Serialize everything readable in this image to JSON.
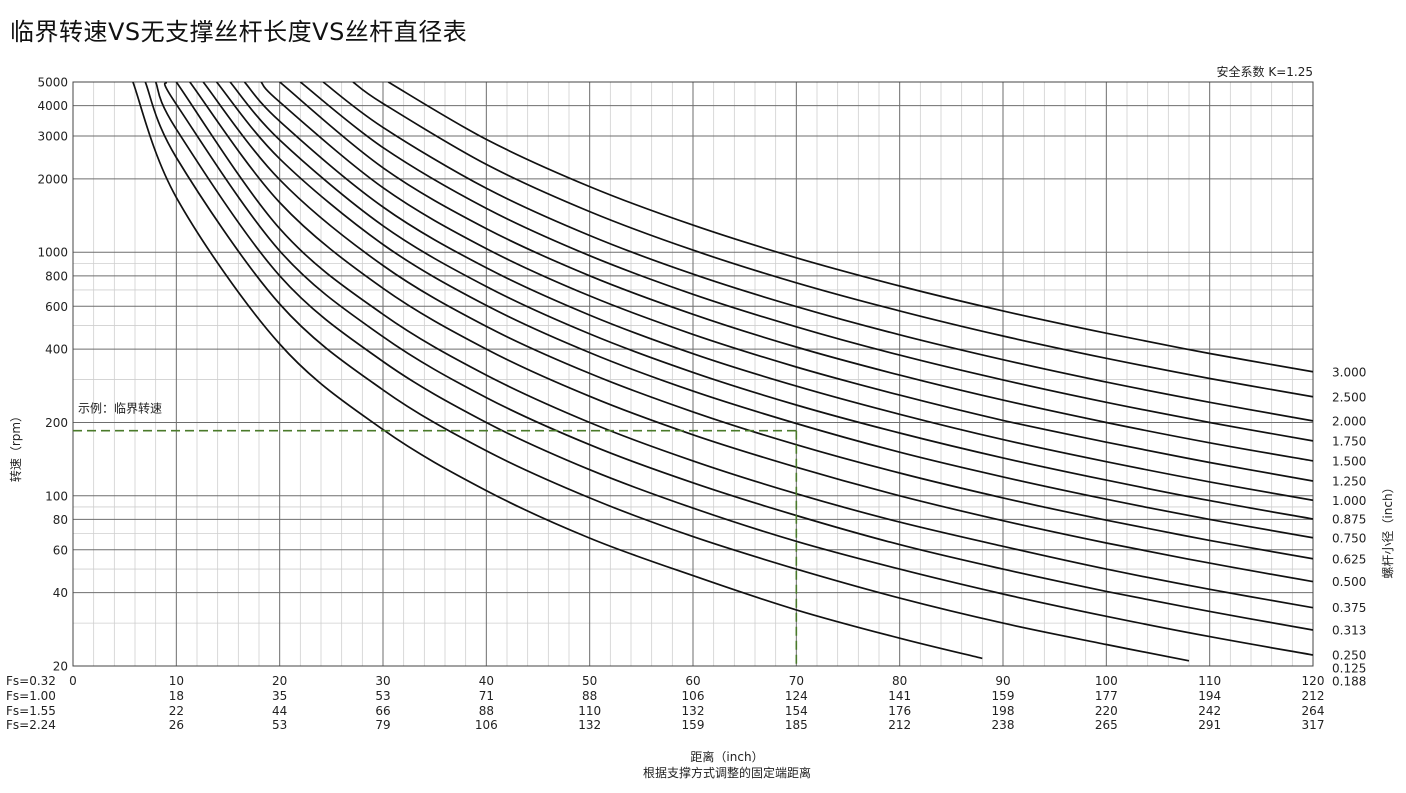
{
  "page": {
    "title": "临界转速VS无支撑丝杆长度VS丝杆直径表"
  },
  "chart_data": {
    "type": "line",
    "x_scale": "linear",
    "y_scale": "log",
    "xlim": [
      0,
      120
    ],
    "ylim": [
      20,
      5000
    ],
    "safety_factor_label": "安全系数 K=1.25",
    "ylabel": "转速（rpm）",
    "y2label": "螺杆小径（inch）",
    "xlabel": "距离（inch）",
    "xsublabel": "根据支撑方式调整的固定端距离",
    "y_ticks": [
      20,
      40,
      60,
      80,
      100,
      200,
      400,
      600,
      800,
      1000,
      2000,
      3000,
      4000,
      5000
    ],
    "x_rows": [
      {
        "label": "Fs=0.32",
        "values": [
          "0",
          "10",
          "20",
          "30",
          "40",
          "50",
          "60",
          "70",
          "80",
          "90",
          "100",
          "110",
          "120"
        ]
      },
      {
        "label": "Fs=1.00",
        "values": [
          "",
          "18",
          "35",
          "53",
          "71",
          "88",
          "106",
          "124",
          "141",
          "159",
          "177",
          "194",
          "212"
        ]
      },
      {
        "label": "Fs=1.55",
        "values": [
          "",
          "22",
          "44",
          "66",
          "88",
          "110",
          "132",
          "154",
          "176",
          "198",
          "220",
          "242",
          "264"
        ]
      },
      {
        "label": "Fs=2.24",
        "values": [
          "",
          "26",
          "53",
          "79",
          "106",
          "132",
          "159",
          "185",
          "212",
          "238",
          "265",
          "291",
          "317"
        ]
      }
    ],
    "x_values": [
      0,
      10,
      20,
      30,
      40,
      50,
      60,
      70,
      80,
      90,
      100,
      110,
      120
    ],
    "series": [
      {
        "name": "0.125",
        "values": [
          [
            5.8,
            5000
          ],
          [
            10,
            1680
          ],
          [
            20,
            420
          ],
          [
            30,
            187
          ],
          [
            40,
            105
          ],
          [
            50,
            67
          ],
          [
            60,
            47
          ],
          [
            70,
            34
          ],
          [
            80,
            26
          ],
          [
            88,
            21.5
          ]
        ]
      },
      {
        "name": "0.188",
        "values": [
          [
            7,
            5000
          ],
          [
            10,
            2450
          ],
          [
            20,
            613
          ],
          [
            30,
            272
          ],
          [
            40,
            153
          ],
          [
            50,
            98
          ],
          [
            60,
            68
          ],
          [
            70,
            50
          ],
          [
            80,
            38
          ],
          [
            90,
            30
          ],
          [
            100,
            24.5
          ],
          [
            108,
            21
          ]
        ]
      },
      {
        "name": "0.250",
        "values": [
          [
            8,
            5000
          ],
          [
            10,
            3200
          ],
          [
            20,
            800
          ],
          [
            30,
            356
          ],
          [
            40,
            200
          ],
          [
            50,
            128
          ],
          [
            60,
            89
          ],
          [
            70,
            65
          ],
          [
            80,
            50
          ],
          [
            90,
            39.5
          ],
          [
            100,
            32
          ],
          [
            110,
            26.4
          ],
          [
            120,
            22.2
          ]
        ]
      },
      {
        "name": "0.313",
        "values": [
          [
            9,
            5000
          ],
          [
            10,
            4050
          ],
          [
            20,
            1013
          ],
          [
            30,
            450
          ],
          [
            40,
            253
          ],
          [
            50,
            162
          ],
          [
            60,
            113
          ],
          [
            70,
            83
          ],
          [
            80,
            63
          ],
          [
            90,
            50
          ],
          [
            100,
            40.5
          ],
          [
            110,
            33.5
          ],
          [
            120,
            28.1
          ]
        ]
      },
      {
        "name": "0.375",
        "values": [
          [
            10,
            5000
          ],
          [
            20,
            1250
          ],
          [
            30,
            556
          ],
          [
            40,
            313
          ],
          [
            50,
            200
          ],
          [
            60,
            139
          ],
          [
            70,
            102
          ],
          [
            80,
            78
          ],
          [
            90,
            62
          ],
          [
            100,
            50
          ],
          [
            110,
            41.3
          ],
          [
            120,
            34.7
          ]
        ]
      },
      {
        "name": "0.500",
        "values": [
          [
            11.3,
            5000
          ],
          [
            20,
            1600
          ],
          [
            30,
            711
          ],
          [
            40,
            400
          ],
          [
            50,
            256
          ],
          [
            60,
            178
          ],
          [
            70,
            131
          ],
          [
            80,
            100
          ],
          [
            90,
            79
          ],
          [
            100,
            64
          ],
          [
            110,
            52.9
          ],
          [
            120,
            44.4
          ]
        ]
      },
      {
        "name": "0.625",
        "values": [
          [
            12.6,
            5000
          ],
          [
            20,
            1985
          ],
          [
            30,
            882
          ],
          [
            40,
            496
          ],
          [
            50,
            318
          ],
          [
            60,
            221
          ],
          [
            70,
            162
          ],
          [
            80,
            124
          ],
          [
            90,
            98
          ],
          [
            100,
            79.4
          ],
          [
            110,
            65.6
          ],
          [
            120,
            55.1
          ]
        ]
      },
      {
        "name": "0.750",
        "values": [
          [
            13.9,
            5000
          ],
          [
            20,
            2420
          ],
          [
            30,
            1076
          ],
          [
            40,
            605
          ],
          [
            50,
            387
          ],
          [
            60,
            269
          ],
          [
            70,
            198
          ],
          [
            80,
            151
          ],
          [
            90,
            119.5
          ],
          [
            100,
            96.8
          ],
          [
            110,
            80
          ],
          [
            120,
            67.2
          ]
        ]
      },
      {
        "name": "0.875",
        "values": [
          [
            15.2,
            5000
          ],
          [
            20,
            2890
          ],
          [
            30,
            1284
          ],
          [
            40,
            723
          ],
          [
            50,
            462
          ],
          [
            60,
            321
          ],
          [
            70,
            236
          ],
          [
            80,
            181
          ],
          [
            90,
            143
          ],
          [
            100,
            116
          ],
          [
            110,
            95.5
          ],
          [
            120,
            80.3
          ]
        ]
      },
      {
        "name": "1.000",
        "values": [
          [
            16.6,
            5000
          ],
          [
            20,
            3450
          ],
          [
            30,
            1533
          ],
          [
            40,
            863
          ],
          [
            50,
            552
          ],
          [
            60,
            383
          ],
          [
            70,
            282
          ],
          [
            80,
            216
          ],
          [
            90,
            170
          ],
          [
            100,
            138
          ],
          [
            110,
            114
          ],
          [
            120,
            95.8
          ]
        ]
      },
      {
        "name": "1.250",
        "values": [
          [
            18.2,
            5000
          ],
          [
            20,
            4140
          ],
          [
            30,
            1840
          ],
          [
            40,
            1035
          ],
          [
            50,
            662
          ],
          [
            60,
            460
          ],
          [
            70,
            338
          ],
          [
            80,
            259
          ],
          [
            90,
            204
          ],
          [
            100,
            166
          ],
          [
            110,
            137
          ],
          [
            120,
            115
          ]
        ]
      },
      {
        "name": "1.500",
        "values": [
          [
            20,
            5000
          ],
          [
            30,
            2222
          ],
          [
            40,
            1250
          ],
          [
            50,
            800
          ],
          [
            60,
            556
          ],
          [
            70,
            408
          ],
          [
            80,
            313
          ],
          [
            90,
            247
          ],
          [
            100,
            200
          ],
          [
            110,
            165
          ],
          [
            120,
            139
          ]
        ]
      },
      {
        "name": "1.750",
        "values": [
          [
            22,
            5000
          ],
          [
            30,
            2690
          ],
          [
            40,
            1513
          ],
          [
            50,
            968
          ],
          [
            60,
            672
          ],
          [
            70,
            494
          ],
          [
            80,
            378
          ],
          [
            90,
            299
          ],
          [
            100,
            242
          ],
          [
            110,
            200
          ],
          [
            120,
            168
          ]
        ]
      },
      {
        "name": "2.000",
        "values": [
          [
            24.2,
            5000
          ],
          [
            30,
            3254
          ],
          [
            40,
            1830
          ],
          [
            50,
            1171
          ],
          [
            60,
            813
          ],
          [
            70,
            598
          ],
          [
            80,
            458
          ],
          [
            90,
            362
          ],
          [
            100,
            293
          ],
          [
            110,
            242
          ],
          [
            120,
            203
          ]
        ]
      },
      {
        "name": "2.500",
        "values": [
          [
            27.1,
            5000
          ],
          [
            30,
            4080
          ],
          [
            40,
            2295
          ],
          [
            50,
            1469
          ],
          [
            60,
            1020
          ],
          [
            70,
            749
          ],
          [
            80,
            574
          ],
          [
            90,
            453
          ],
          [
            100,
            367
          ],
          [
            110,
            303
          ],
          [
            120,
            255
          ]
        ]
      },
      {
        "name": "3.000",
        "values": [
          [
            30.5,
            5000
          ],
          [
            40,
            2907
          ],
          [
            50,
            1860
          ],
          [
            60,
            1292
          ],
          [
            70,
            949
          ],
          [
            80,
            727
          ],
          [
            90,
            574
          ],
          [
            100,
            465
          ],
          [
            110,
            384
          ],
          [
            120,
            323
          ]
        ]
      }
    ],
    "right_labels": [
      "3.000",
      "2.500",
      "2.000",
      "1.750",
      "1.500",
      "1.250",
      "1.000",
      "0.875",
      "0.750",
      "0.625",
      "0.500",
      "0.375",
      "0.313",
      "0.250",
      "0.188",
      "0.125"
    ],
    "example": {
      "label": "示例：临界转速",
      "x": 70,
      "y": 185,
      "color": "#4a7a2a"
    },
    "grid": true,
    "colors": {
      "curve": "#111111",
      "grid_major": "#6e6e6e",
      "grid_minor": "#cfcfcf",
      "example": "#4a7a2a"
    }
  }
}
